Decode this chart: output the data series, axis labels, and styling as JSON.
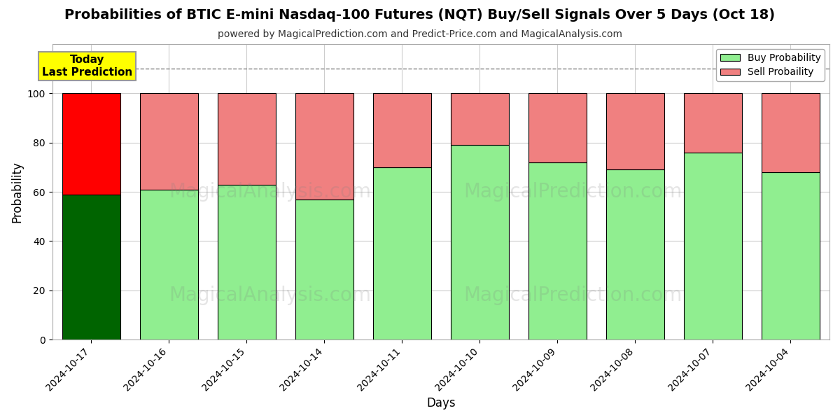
{
  "title": "Probabilities of BTIC E-mini Nasdaq-100 Futures (NQT) Buy/Sell Signals Over 5 Days (Oct 18)",
  "subtitle": "powered by MagicalPrediction.com and Predict-Price.com and MagicalAnalysis.com",
  "xlabel": "Days",
  "ylabel": "Probability",
  "dates": [
    "2024-10-17",
    "2024-10-16",
    "2024-10-15",
    "2024-10-14",
    "2024-10-11",
    "2024-10-10",
    "2024-10-09",
    "2024-10-08",
    "2024-10-07",
    "2024-10-04"
  ],
  "buy_values": [
    59,
    61,
    63,
    57,
    70,
    79,
    72,
    69,
    76,
    68
  ],
  "sell_values": [
    41,
    39,
    37,
    43,
    30,
    21,
    28,
    31,
    24,
    32
  ],
  "today_bar_buy_color": "#006400",
  "today_bar_sell_color": "#FF0000",
  "regular_bar_buy_color": "#90EE90",
  "regular_bar_sell_color": "#F08080",
  "bar_edgecolor": "#000000",
  "watermark_text1": "MagicalAnalysis.com",
  "watermark_text2": "MagicalPrediction.com",
  "dashed_line_y": 110,
  "ylim": [
    0,
    120
  ],
  "yticks": [
    0,
    20,
    40,
    60,
    80,
    100
  ],
  "legend_buy_label": "Buy Probability",
  "legend_sell_label": "Sell Probaility",
  "annotation_text": "Today\nLast Prediction",
  "annotation_box_color": "#FFFF00",
  "title_fontsize": 14,
  "subtitle_fontsize": 10,
  "axis_fontsize": 12,
  "tick_fontsize": 10,
  "background_color": "#FFFFFF",
  "grid_color": "#CCCCCC"
}
